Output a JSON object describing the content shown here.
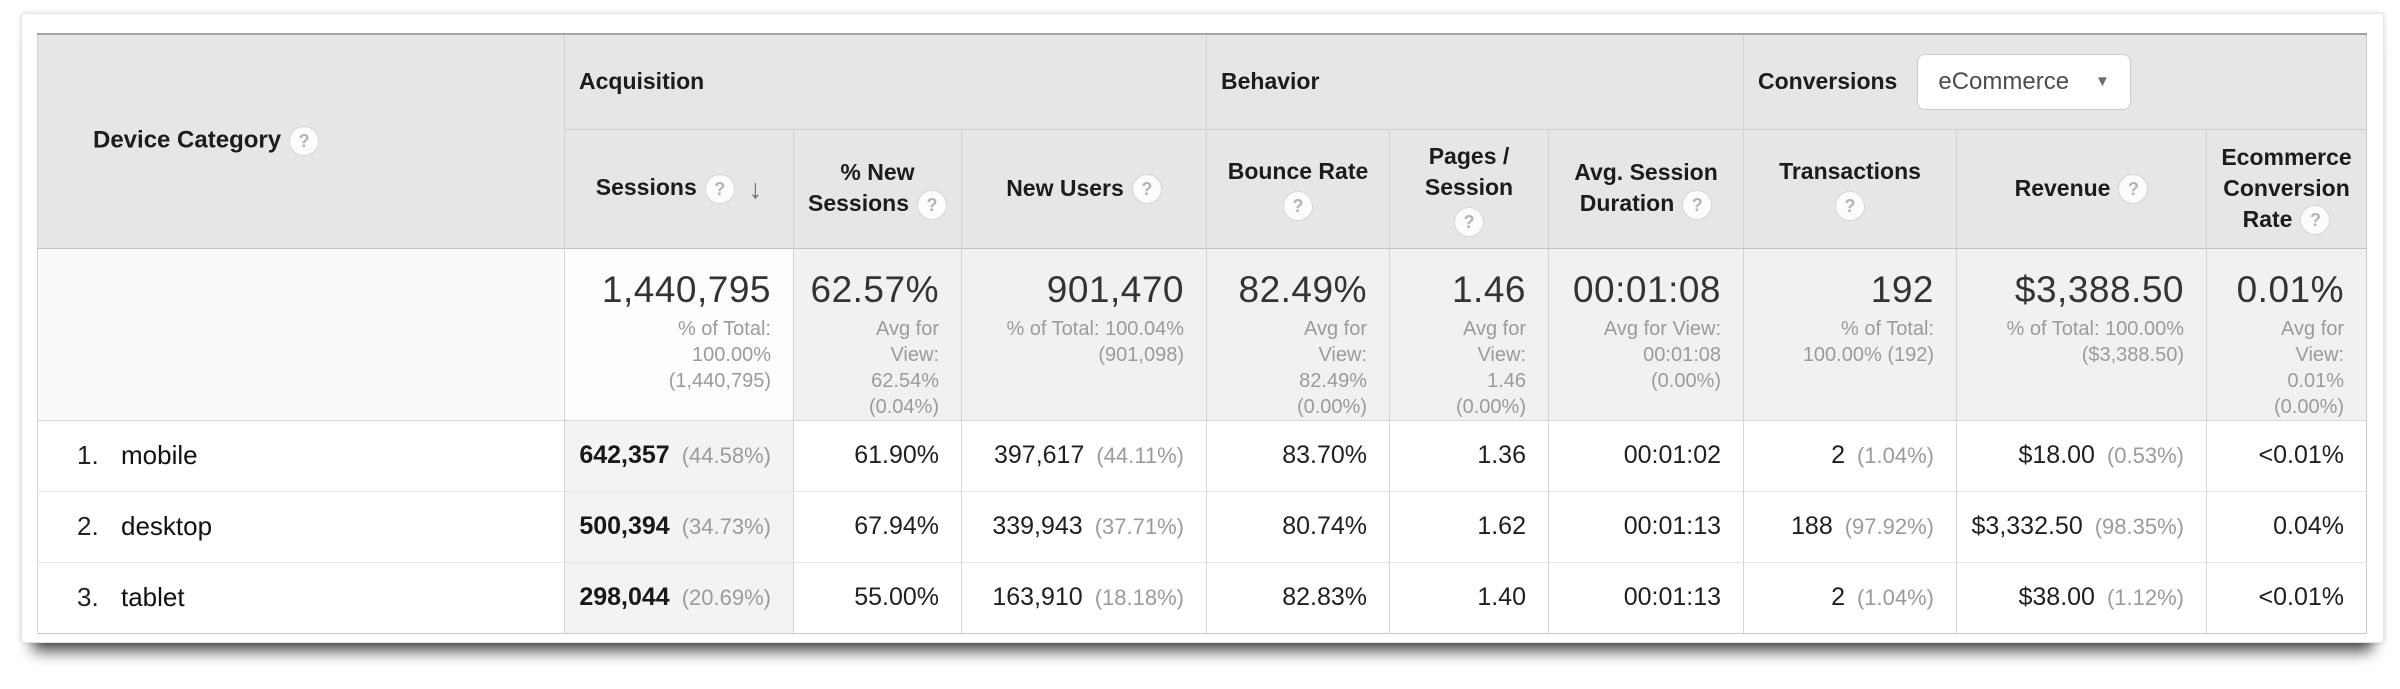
{
  "icons": {
    "help": "?",
    "sort_desc": "↓",
    "caret_down": "▼"
  },
  "colors": {
    "header_bg": "#e6e6e6",
    "summary_bg": "#f1f1f1",
    "sorted_column_bg": "#f3f3f3",
    "subtext_gray": "#9b9b9b",
    "text_dark": "#1f1f1f",
    "border_gray": "#d4d4d4"
  },
  "table": {
    "dimension_header": {
      "label": "Device Category"
    },
    "sections": {
      "acquisition": "Acquisition",
      "behavior": "Behavior",
      "conversions": "Conversions"
    },
    "conversions_dropdown": {
      "value": "eCommerce"
    },
    "columns": {
      "sessions": "Sessions",
      "pct_new_sessions": "% New Sessions",
      "new_users": "New Users",
      "bounce_rate": "Bounce Rate",
      "pages_session": "Pages / Session",
      "avg_session_duration": "Avg. Session Duration",
      "transactions": "Transactions",
      "revenue": "Revenue",
      "ecomm_conversion_rate": "Ecommerce Conversion Rate"
    },
    "summary": {
      "sessions": {
        "value": "1,440,795",
        "note": "% of Total: 100.00% (1,440,795)"
      },
      "pct_new_sessions": {
        "value": "62.57%",
        "note": "Avg for View: 62.54% (0.04%)"
      },
      "new_users": {
        "value": "901,470",
        "note": "% of Total: 100.04% (901,098)"
      },
      "bounce_rate": {
        "value": "82.49%",
        "note": "Avg for View: 82.49% (0.00%)"
      },
      "pages_session": {
        "value": "1.46",
        "note": "Avg for View: 1.46 (0.00%)"
      },
      "avg_duration": {
        "value": "00:01:08",
        "note": "Avg for View: 00:01:08 (0.00%)"
      },
      "transactions": {
        "value": "192",
        "note": "% of Total: 100.00% (192)"
      },
      "revenue": {
        "value": "$3,388.50",
        "note": "% of Total: 100.00% ($3,388.50)"
      },
      "ecomm_rate": {
        "value": "0.01%",
        "note": "Avg for View: 0.01% (0.00%)"
      }
    },
    "rows": [
      {
        "rank": "1.",
        "name": "mobile",
        "sessions": "642,357",
        "sessions_pct": "(44.58%)",
        "pct_new_sessions": "61.90%",
        "new_users": "397,617",
        "new_users_pct": "(44.11%)",
        "bounce_rate": "83.70%",
        "pages_session": "1.36",
        "avg_duration": "00:01:02",
        "transactions": "2",
        "transactions_pct": "(1.04%)",
        "revenue": "$18.00",
        "revenue_pct": "(0.53%)",
        "ecomm_rate": "<0.01%"
      },
      {
        "rank": "2.",
        "name": "desktop",
        "sessions": "500,394",
        "sessions_pct": "(34.73%)",
        "pct_new_sessions": "67.94%",
        "new_users": "339,943",
        "new_users_pct": "(37.71%)",
        "bounce_rate": "80.74%",
        "pages_session": "1.62",
        "avg_duration": "00:01:13",
        "transactions": "188",
        "transactions_pct": "(97.92%)",
        "revenue": "$3,332.50",
        "revenue_pct": "(98.35%)",
        "ecomm_rate": "0.04%"
      },
      {
        "rank": "3.",
        "name": "tablet",
        "sessions": "298,044",
        "sessions_pct": "(20.69%)",
        "pct_new_sessions": "55.00%",
        "new_users": "163,910",
        "new_users_pct": "(18.18%)",
        "bounce_rate": "82.83%",
        "pages_session": "1.40",
        "avg_duration": "00:01:13",
        "transactions": "2",
        "transactions_pct": "(1.04%)",
        "revenue": "$38.00",
        "revenue_pct": "(1.12%)",
        "ecomm_rate": "<0.01%"
      }
    ]
  }
}
